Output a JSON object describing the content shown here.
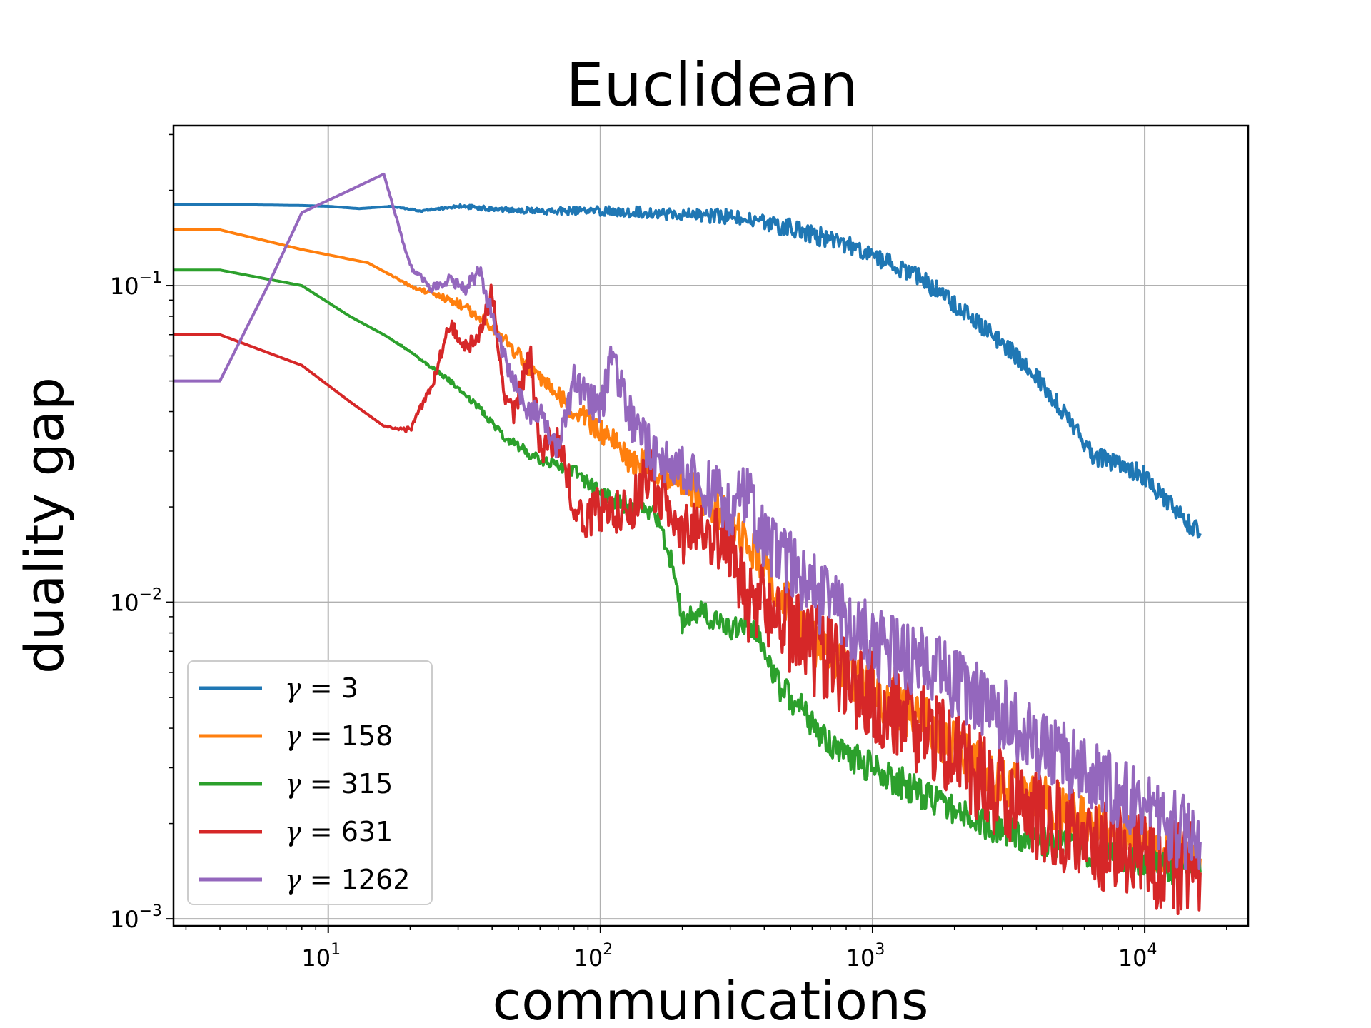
{
  "chart_data": {
    "type": "line",
    "title": "Euclidean",
    "xlabel": "communications",
    "ylabel": "duality gap",
    "xscale": "log",
    "yscale": "log",
    "xlim": [
      2.7,
      24000
    ],
    "ylim": [
      0.00095,
      0.32
    ],
    "grid": true,
    "legend_position": "lower-left",
    "x_ticks": [
      {
        "base": "10",
        "exp": "1"
      },
      {
        "base": "10",
        "exp": "2"
      },
      {
        "base": "10",
        "exp": "3"
      },
      {
        "base": "10",
        "exp": "4"
      }
    ],
    "y_ticks": [
      {
        "base": "10",
        "exp": "−3"
      },
      {
        "base": "10",
        "exp": "−2"
      },
      {
        "base": "10",
        "exp": "−1"
      }
    ],
    "series": [
      {
        "name": "γ = 3",
        "gamma": "γ",
        "value": "3",
        "color": "#1f77b4",
        "noise": 0.03,
        "points": [
          [
            2.7,
            0.18
          ],
          [
            5,
            0.18
          ],
          [
            8,
            0.179
          ],
          [
            10,
            0.178
          ],
          [
            13,
            0.175
          ],
          [
            17,
            0.178
          ],
          [
            22,
            0.172
          ],
          [
            30,
            0.178
          ],
          [
            40,
            0.175
          ],
          [
            60,
            0.172
          ],
          [
            100,
            0.172
          ],
          [
            150,
            0.17
          ],
          [
            200,
            0.168
          ],
          [
            300,
            0.165
          ],
          [
            500,
            0.152
          ],
          [
            700,
            0.14
          ],
          [
            1000,
            0.125
          ],
          [
            1500,
            0.105
          ],
          [
            2000,
            0.088
          ],
          [
            3000,
            0.066
          ],
          [
            4000,
            0.052
          ],
          [
            5000,
            0.04
          ],
          [
            6500,
            0.029
          ],
          [
            8000,
            0.0275
          ],
          [
            10000,
            0.025
          ],
          [
            12000,
            0.021
          ],
          [
            14000,
            0.018
          ],
          [
            16000,
            0.0165
          ]
        ]
      },
      {
        "name": "γ = 158",
        "gamma": "γ",
        "value": "158",
        "color": "#ff7f0e",
        "noise": 0.08,
        "points": [
          [
            2.7,
            0.15
          ],
          [
            4,
            0.15
          ],
          [
            8,
            0.13
          ],
          [
            14,
            0.118
          ],
          [
            20,
            0.1
          ],
          [
            25,
            0.093
          ],
          [
            30,
            0.088
          ],
          [
            40,
            0.075
          ],
          [
            50,
            0.06
          ],
          [
            60,
            0.05
          ],
          [
            80,
            0.04
          ],
          [
            100,
            0.035
          ],
          [
            130,
            0.028
          ],
          [
            150,
            0.027
          ],
          [
            200,
            0.024
          ],
          [
            300,
            0.018
          ],
          [
            400,
            0.013
          ],
          [
            500,
            0.0095
          ],
          [
            700,
            0.0065
          ],
          [
            1000,
            0.0052
          ],
          [
            1500,
            0.0043
          ],
          [
            2000,
            0.0035
          ],
          [
            3000,
            0.0027
          ],
          [
            5000,
            0.0022
          ],
          [
            8000,
            0.0018
          ],
          [
            12000,
            0.00165
          ],
          [
            16000,
            0.00155
          ]
        ]
      },
      {
        "name": "γ = 315",
        "gamma": "γ",
        "value": "315",
        "color": "#2ca02c",
        "noise": 0.05,
        "points": [
          [
            2.7,
            0.112
          ],
          [
            4,
            0.112
          ],
          [
            8,
            0.1
          ],
          [
            12,
            0.08
          ],
          [
            16,
            0.07
          ],
          [
            20,
            0.062
          ],
          [
            28,
            0.05
          ],
          [
            35,
            0.042
          ],
          [
            45,
            0.033
          ],
          [
            60,
            0.028
          ],
          [
            80,
            0.026
          ],
          [
            100,
            0.022
          ],
          [
            130,
            0.02
          ],
          [
            160,
            0.019
          ],
          [
            190,
            0.012
          ],
          [
            200,
            0.0085
          ],
          [
            220,
            0.0095
          ],
          [
            250,
            0.009
          ],
          [
            300,
            0.008
          ],
          [
            350,
            0.009
          ],
          [
            400,
            0.007
          ],
          [
            450,
            0.0055
          ],
          [
            500,
            0.005
          ],
          [
            600,
            0.0042
          ],
          [
            700,
            0.0035
          ],
          [
            1000,
            0.003
          ],
          [
            1500,
            0.0025
          ],
          [
            2000,
            0.0022
          ],
          [
            3000,
            0.0019
          ],
          [
            5000,
            0.0017
          ],
          [
            8000,
            0.00155
          ],
          [
            12000,
            0.00145
          ],
          [
            16000,
            0.0014
          ]
        ]
      },
      {
        "name": "γ = 631",
        "gamma": "γ",
        "value": "631",
        "color": "#d62728",
        "noise": 0.15,
        "points": [
          [
            2.7,
            0.07
          ],
          [
            4,
            0.07
          ],
          [
            8,
            0.056
          ],
          [
            12,
            0.043
          ],
          [
            16,
            0.036
          ],
          [
            20,
            0.035
          ],
          [
            24,
            0.048
          ],
          [
            28,
            0.076
          ],
          [
            32,
            0.063
          ],
          [
            36,
            0.068
          ],
          [
            40,
            0.1
          ],
          [
            44,
            0.048
          ],
          [
            48,
            0.038
          ],
          [
            55,
            0.062
          ],
          [
            60,
            0.03
          ],
          [
            70,
            0.033
          ],
          [
            80,
            0.02
          ],
          [
            90,
            0.018
          ],
          [
            100,
            0.02
          ],
          [
            130,
            0.02
          ],
          [
            150,
            0.026
          ],
          [
            200,
            0.016
          ],
          [
            250,
            0.016
          ],
          [
            300,
            0.015
          ],
          [
            350,
            0.01
          ],
          [
            400,
            0.01
          ],
          [
            500,
            0.008
          ],
          [
            700,
            0.0065
          ],
          [
            1000,
            0.005
          ],
          [
            1500,
            0.004
          ],
          [
            2000,
            0.0033
          ],
          [
            3000,
            0.0025
          ],
          [
            5000,
            0.0019
          ],
          [
            8000,
            0.0016
          ],
          [
            12000,
            0.0015
          ],
          [
            16000,
            0.0014
          ]
        ]
      },
      {
        "name": "γ = 1262",
        "gamma": "γ",
        "value": "1262",
        "color": "#9467bd",
        "noise": 0.12,
        "points": [
          [
            2.7,
            0.05
          ],
          [
            4,
            0.05
          ],
          [
            6,
            0.1
          ],
          [
            8,
            0.17
          ],
          [
            12,
            0.2
          ],
          [
            16,
            0.225
          ],
          [
            20,
            0.115
          ],
          [
            24,
            0.098
          ],
          [
            28,
            0.105
          ],
          [
            32,
            0.098
          ],
          [
            36,
            0.112
          ],
          [
            40,
            0.08
          ],
          [
            45,
            0.058
          ],
          [
            50,
            0.046
          ],
          [
            55,
            0.04
          ],
          [
            60,
            0.04
          ],
          [
            70,
            0.03
          ],
          [
            80,
            0.05
          ],
          [
            90,
            0.045
          ],
          [
            100,
            0.04
          ],
          [
            110,
            0.06
          ],
          [
            130,
            0.038
          ],
          [
            160,
            0.028
          ],
          [
            200,
            0.026
          ],
          [
            250,
            0.023
          ],
          [
            300,
            0.02
          ],
          [
            350,
            0.022
          ],
          [
            400,
            0.016
          ],
          [
            500,
            0.013
          ],
          [
            700,
            0.0095
          ],
          [
            1000,
            0.0075
          ],
          [
            1500,
            0.0065
          ],
          [
            2000,
            0.0055
          ],
          [
            3000,
            0.0045
          ],
          [
            5000,
            0.0032
          ],
          [
            8000,
            0.0025
          ],
          [
            12000,
            0.002
          ],
          [
            16000,
            0.00175
          ]
        ]
      }
    ]
  }
}
